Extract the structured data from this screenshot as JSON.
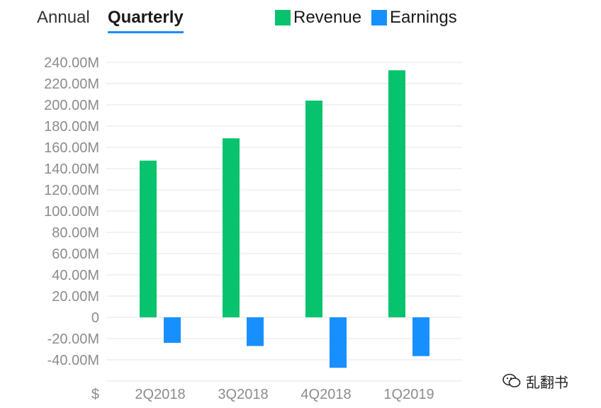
{
  "tabs": {
    "annual": "Annual",
    "quarterly": "Quarterly",
    "active": "quarterly"
  },
  "watermark": "乱翻书",
  "icons": {
    "watermark": "wechat-official-account-icon"
  },
  "colors": {
    "revenue": "#08c36d",
    "earnings": "#188fff",
    "active_tab_underline": "#188fff",
    "grid": "#e6e6e6",
    "axis_text": "#8c8c8c"
  },
  "chart_data": {
    "type": "bar",
    "categories": [
      "2Q2018",
      "3Q2018",
      "4Q2018",
      "1Q2019"
    ],
    "series": [
      {
        "name": "Revenue",
        "values": [
          147.5,
          168.5,
          204,
          232.5
        ]
      },
      {
        "name": "Earnings",
        "values": [
          -24,
          -27,
          -47.5,
          -36.5
        ]
      }
    ],
    "yticks": [
      "240.00M",
      "220.00M",
      "200.00M",
      "180.00M",
      "160.00M",
      "140.00M",
      "120.00M",
      "100.00M",
      "80.00M",
      "60.00M",
      "40.00M",
      "20.00M",
      "0",
      "-20.00M",
      "-40.00M"
    ],
    "ytick_values": [
      240,
      220,
      200,
      180,
      160,
      140,
      120,
      100,
      80,
      60,
      40,
      20,
      0,
      -20,
      -40
    ],
    "currency_label": "$",
    "ylim": [
      -60,
      240
    ],
    "grid": true,
    "legend": "top"
  }
}
